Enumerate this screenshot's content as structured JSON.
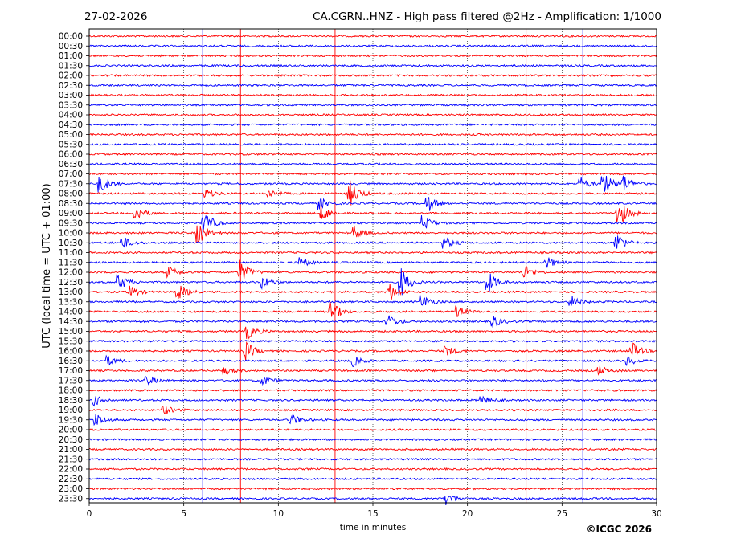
{
  "header": {
    "date": "27-02-2026",
    "title": "CA.CGRN..HNZ - High pass filtered @2Hz - Amplification: 1/1000"
  },
  "footer": {
    "copyright": "©ICGC 2026"
  },
  "colors": {
    "trace_a": "#ff0000",
    "trace_b": "#0000ff",
    "grid": "#000000"
  },
  "chart_data": {
    "type": "line",
    "title": "CA.CGRN..HNZ - High pass filtered @2Hz - Amplification: 1/1000",
    "xlabel": "time in minutes",
    "ylabel": "UTC (local time = UTC + 01:00)",
    "xlim": [
      0,
      30
    ],
    "x_ticks": [
      0,
      5,
      10,
      15,
      20,
      25,
      30
    ],
    "grid_x": "dotted",
    "row_labels": [
      "00:00",
      "00:30",
      "01:00",
      "01:30",
      "02:00",
      "02:30",
      "03:00",
      "03:30",
      "04:00",
      "04:30",
      "05:00",
      "05:30",
      "06:00",
      "06:30",
      "07:00",
      "07:30",
      "08:00",
      "08:30",
      "09:00",
      "09:30",
      "10:00",
      "10:30",
      "11:00",
      "11:30",
      "12:00",
      "12:30",
      "13:00",
      "13:30",
      "14:00",
      "14:30",
      "15:00",
      "15:30",
      "16:00",
      "16:30",
      "17:00",
      "17:30",
      "18:00",
      "18:30",
      "19:00",
      "19:30",
      "20:00",
      "20:30",
      "21:00",
      "21:30",
      "22:00",
      "22:30",
      "23:00",
      "23:30"
    ],
    "row_colors": [
      "red",
      "blue",
      "red",
      "blue",
      "red",
      "blue",
      "red",
      "blue",
      "red",
      "blue",
      "red",
      "blue",
      "red",
      "blue",
      "red",
      "blue",
      "red",
      "blue",
      "red",
      "blue",
      "red",
      "blue",
      "red",
      "blue",
      "red",
      "blue",
      "red",
      "blue",
      "red",
      "blue",
      "red",
      "blue",
      "red",
      "blue",
      "red",
      "blue",
      "red",
      "blue",
      "red",
      "blue",
      "red",
      "blue",
      "red",
      "blue",
      "red",
      "blue",
      "red",
      "blue"
    ],
    "vertical_lines": [
      {
        "x": 6.0,
        "color": "blue"
      },
      {
        "x": 8.0,
        "color": "red"
      },
      {
        "x": 13.0,
        "color": "red"
      },
      {
        "x": 14.0,
        "color": "blue"
      },
      {
        "x": 23.1,
        "color": "red"
      },
      {
        "x": 26.1,
        "color": "blue"
      }
    ],
    "events": [
      {
        "row": 15,
        "x": 0.6,
        "amp": 1.2
      },
      {
        "row": 15,
        "x": 27.2,
        "amp": 1.6
      },
      {
        "row": 15,
        "x": 28.3,
        "amp": 1.0
      },
      {
        "row": 15,
        "x": 26.0,
        "amp": 0.8
      },
      {
        "row": 16,
        "x": 6.2,
        "amp": 0.6
      },
      {
        "row": 16,
        "x": 13.8,
        "amp": 1.8
      },
      {
        "row": 16,
        "x": 9.5,
        "amp": 0.6
      },
      {
        "row": 17,
        "x": 17.9,
        "amp": 1.2
      },
      {
        "row": 17,
        "x": 12.2,
        "amp": 0.8
      },
      {
        "row": 18,
        "x": 2.5,
        "amp": 1.0
      },
      {
        "row": 18,
        "x": 12.3,
        "amp": 1.2
      },
      {
        "row": 18,
        "x": 28.0,
        "amp": 2.0
      },
      {
        "row": 19,
        "x": 6.1,
        "amp": 1.6
      },
      {
        "row": 19,
        "x": 17.7,
        "amp": 1.0
      },
      {
        "row": 20,
        "x": 5.8,
        "amp": 1.4
      },
      {
        "row": 20,
        "x": 14.0,
        "amp": 1.0
      },
      {
        "row": 21,
        "x": 1.8,
        "amp": 0.8
      },
      {
        "row": 21,
        "x": 18.8,
        "amp": 0.8
      },
      {
        "row": 21,
        "x": 27.9,
        "amp": 1.4
      },
      {
        "row": 23,
        "x": 11.2,
        "amp": 0.7
      },
      {
        "row": 23,
        "x": 24.2,
        "amp": 0.8
      },
      {
        "row": 24,
        "x": 8.0,
        "amp": 1.6
      },
      {
        "row": 24,
        "x": 4.2,
        "amp": 0.8
      },
      {
        "row": 24,
        "x": 23.0,
        "amp": 1.0
      },
      {
        "row": 25,
        "x": 1.6,
        "amp": 1.0
      },
      {
        "row": 25,
        "x": 16.5,
        "amp": 2.0
      },
      {
        "row": 25,
        "x": 21.1,
        "amp": 1.4
      },
      {
        "row": 25,
        "x": 9.2,
        "amp": 0.8
      },
      {
        "row": 26,
        "x": 2.2,
        "amp": 0.8
      },
      {
        "row": 26,
        "x": 4.7,
        "amp": 1.2
      },
      {
        "row": 26,
        "x": 15.9,
        "amp": 1.2
      },
      {
        "row": 27,
        "x": 17.6,
        "amp": 1.0
      },
      {
        "row": 27,
        "x": 25.5,
        "amp": 0.8
      },
      {
        "row": 28,
        "x": 12.8,
        "amp": 1.4
      },
      {
        "row": 28,
        "x": 19.5,
        "amp": 0.7
      },
      {
        "row": 29,
        "x": 21.4,
        "amp": 0.8
      },
      {
        "row": 29,
        "x": 15.8,
        "amp": 1.0
      },
      {
        "row": 30,
        "x": 8.4,
        "amp": 1.0
      },
      {
        "row": 32,
        "x": 8.3,
        "amp": 1.2
      },
      {
        "row": 32,
        "x": 18.9,
        "amp": 0.7
      },
      {
        "row": 32,
        "x": 28.7,
        "amp": 1.2
      },
      {
        "row": 33,
        "x": 1.0,
        "amp": 0.6
      },
      {
        "row": 33,
        "x": 14.0,
        "amp": 0.7
      },
      {
        "row": 33,
        "x": 28.5,
        "amp": 0.6
      },
      {
        "row": 34,
        "x": 7.2,
        "amp": 0.5
      },
      {
        "row": 34,
        "x": 27.0,
        "amp": 0.6
      },
      {
        "row": 35,
        "x": 3.1,
        "amp": 0.6
      },
      {
        "row": 35,
        "x": 9.2,
        "amp": 0.6
      },
      {
        "row": 37,
        "x": 0.3,
        "amp": 0.7
      },
      {
        "row": 37,
        "x": 20.8,
        "amp": 0.5
      },
      {
        "row": 38,
        "x": 4.0,
        "amp": 0.6
      },
      {
        "row": 39,
        "x": 0.4,
        "amp": 0.8
      },
      {
        "row": 39,
        "x": 10.7,
        "amp": 0.7
      },
      {
        "row": 47,
        "x": 18.9,
        "amp": 0.8
      }
    ]
  }
}
